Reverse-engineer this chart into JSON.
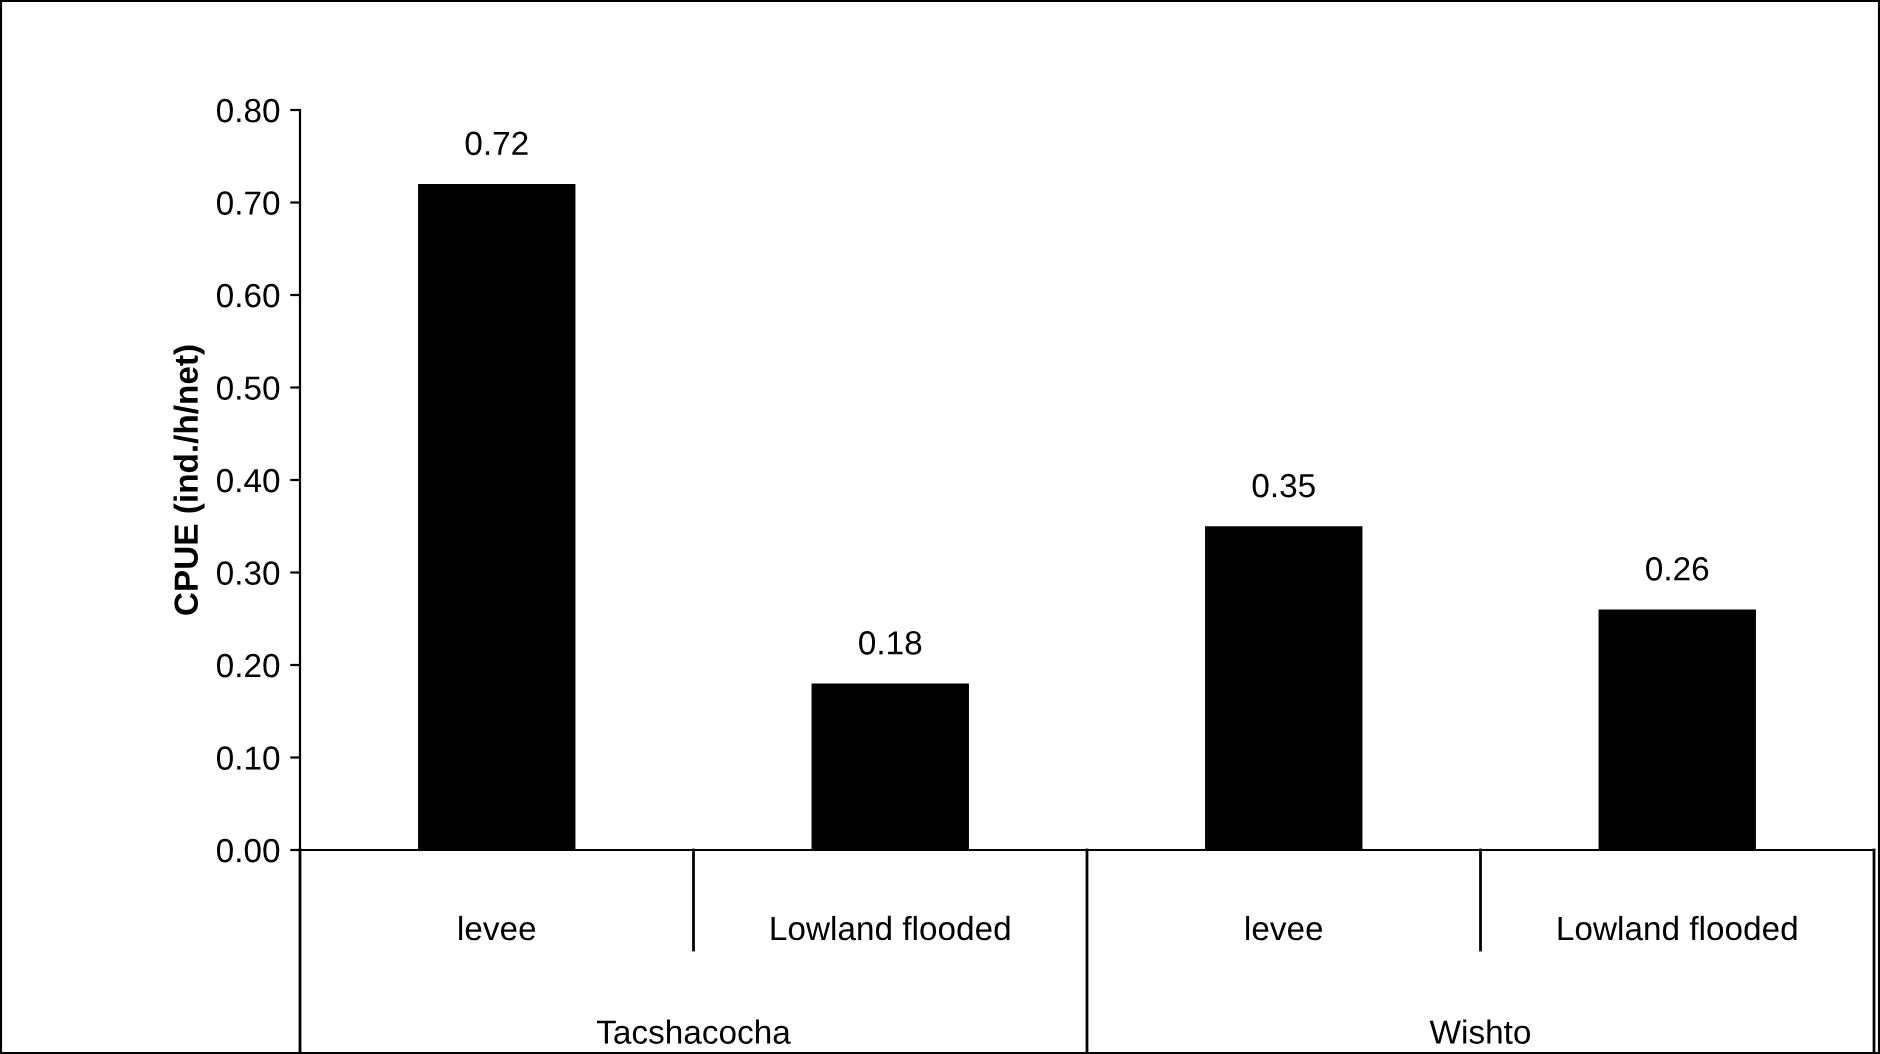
{
  "chart_data": {
    "type": "bar",
    "ylabel": "CPUE (ind./h/net)",
    "categories": [
      "levee",
      "Lowland flooded",
      "levee",
      "Lowland flooded"
    ],
    "values": [
      0.72,
      0.18,
      0.35,
      0.26
    ],
    "color": "#000000",
    "data_labels": true,
    "ylim": [
      0,
      0.8
    ],
    "yticks": [
      {
        "value": 0,
        "label": "0.00"
      },
      {
        "value": 0.1,
        "label": "0.10"
      },
      {
        "value": 0.2,
        "label": "0.20"
      },
      {
        "value": 0.3,
        "label": "0.30"
      },
      {
        "value": 0.4,
        "label": "0.40"
      },
      {
        "value": 0.5,
        "label": "0.50"
      },
      {
        "value": 0.6,
        "label": "0.60"
      },
      {
        "value": 0.7,
        "label": "0.70"
      },
      {
        "value": 0.8,
        "label": "0.80"
      }
    ],
    "annotations": [
      "Tacshacocha",
      "Wishto"
    ],
    "grid": false,
    "legend": false
  }
}
